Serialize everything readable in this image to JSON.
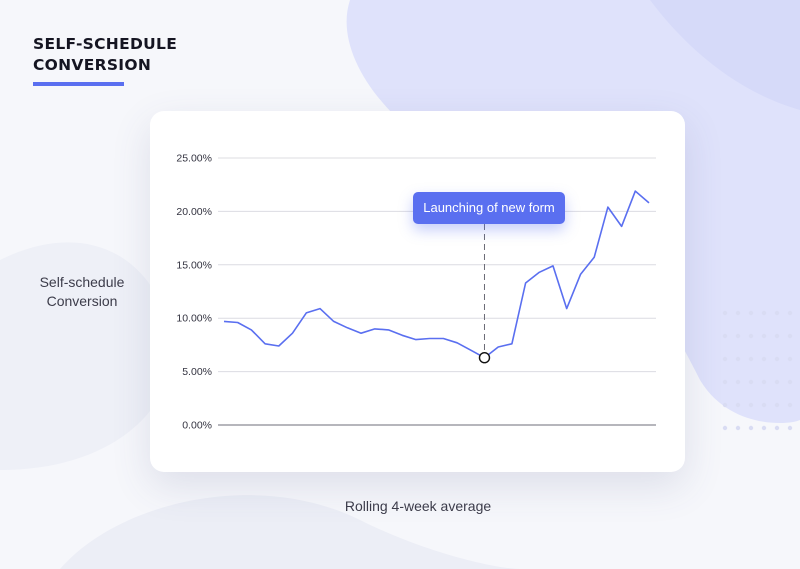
{
  "page": {
    "title": "SELF-SCHEDULE CONVERSION",
    "ylabel": "Self-schedule Conversion",
    "xlabel": "Rolling 4-week average"
  },
  "colors": {
    "accent": "#5a6ff0",
    "line": "#5a6ff0",
    "background": "#f6f7fb",
    "blob": "#dfe2fb",
    "dots": "#d9dcf3"
  },
  "chart_data": {
    "type": "line",
    "title": "",
    "xlabel": "Rolling 4-week average",
    "ylabel": "Self-schedule Conversion",
    "y_tick_labels": [
      "25.00%",
      "20.00%",
      "15.00%",
      "10.00%",
      "5.00%",
      "0.00%"
    ],
    "ylim": [
      0,
      25
    ],
    "grid": true,
    "series": [
      {
        "values": [
          9.7,
          9.6,
          8.9,
          7.6,
          7.4,
          8.6,
          10.5,
          10.9,
          9.7,
          9.1,
          8.6,
          9.0,
          8.9,
          8.4,
          8.0,
          8.1,
          8.1,
          7.7,
          7.0,
          6.3,
          7.3,
          7.6,
          13.3,
          14.3,
          14.9,
          10.9,
          14.1,
          15.7,
          20.4,
          18.6,
          21.9,
          20.8
        ]
      }
    ],
    "annotation": {
      "text": "Launching of new form",
      "index": 19
    }
  }
}
